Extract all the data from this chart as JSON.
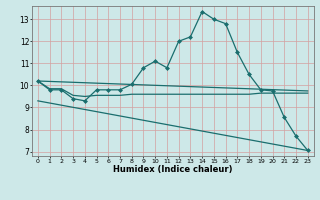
{
  "xlabel": "Humidex (Indice chaleur)",
  "background_color": "#cde8e8",
  "grid_color": "#d4a0a0",
  "line_color": "#1a6e6e",
  "xlim": [
    -0.5,
    23.5
  ],
  "ylim": [
    6.8,
    13.6
  ],
  "yticks": [
    7,
    8,
    9,
    10,
    11,
    12,
    13
  ],
  "xticks": [
    0,
    1,
    2,
    3,
    4,
    5,
    6,
    7,
    8,
    9,
    10,
    11,
    12,
    13,
    14,
    15,
    16,
    17,
    18,
    19,
    20,
    21,
    22,
    23
  ],
  "line1_x": [
    0,
    1,
    2,
    3,
    4,
    5,
    6,
    7,
    8,
    9,
    10,
    11,
    12,
    13,
    14,
    15,
    16,
    17,
    18,
    19,
    20,
    21,
    22,
    23
  ],
  "line1_y": [
    10.2,
    9.8,
    9.8,
    9.4,
    9.3,
    9.8,
    9.8,
    9.8,
    10.05,
    10.8,
    11.1,
    10.8,
    12.0,
    12.2,
    13.35,
    13.0,
    12.8,
    11.5,
    10.5,
    9.8,
    9.75,
    8.55,
    7.7,
    7.05
  ],
  "line2_x": [
    0,
    1,
    2,
    3,
    4,
    5,
    6,
    7,
    8,
    9,
    10,
    11,
    12,
    13,
    14,
    15,
    16,
    17,
    18,
    19,
    20,
    21,
    22,
    23
  ],
  "line2_y": [
    10.2,
    9.85,
    9.85,
    9.55,
    9.5,
    9.55,
    9.55,
    9.55,
    9.6,
    9.6,
    9.6,
    9.6,
    9.6,
    9.6,
    9.6,
    9.6,
    9.6,
    9.6,
    9.6,
    9.65,
    9.65,
    9.65,
    9.65,
    9.65
  ],
  "line3_x": [
    0,
    23
  ],
  "line3_y": [
    10.2,
    9.75
  ],
  "line4_x": [
    0,
    23
  ],
  "line4_y": [
    9.3,
    7.05
  ]
}
